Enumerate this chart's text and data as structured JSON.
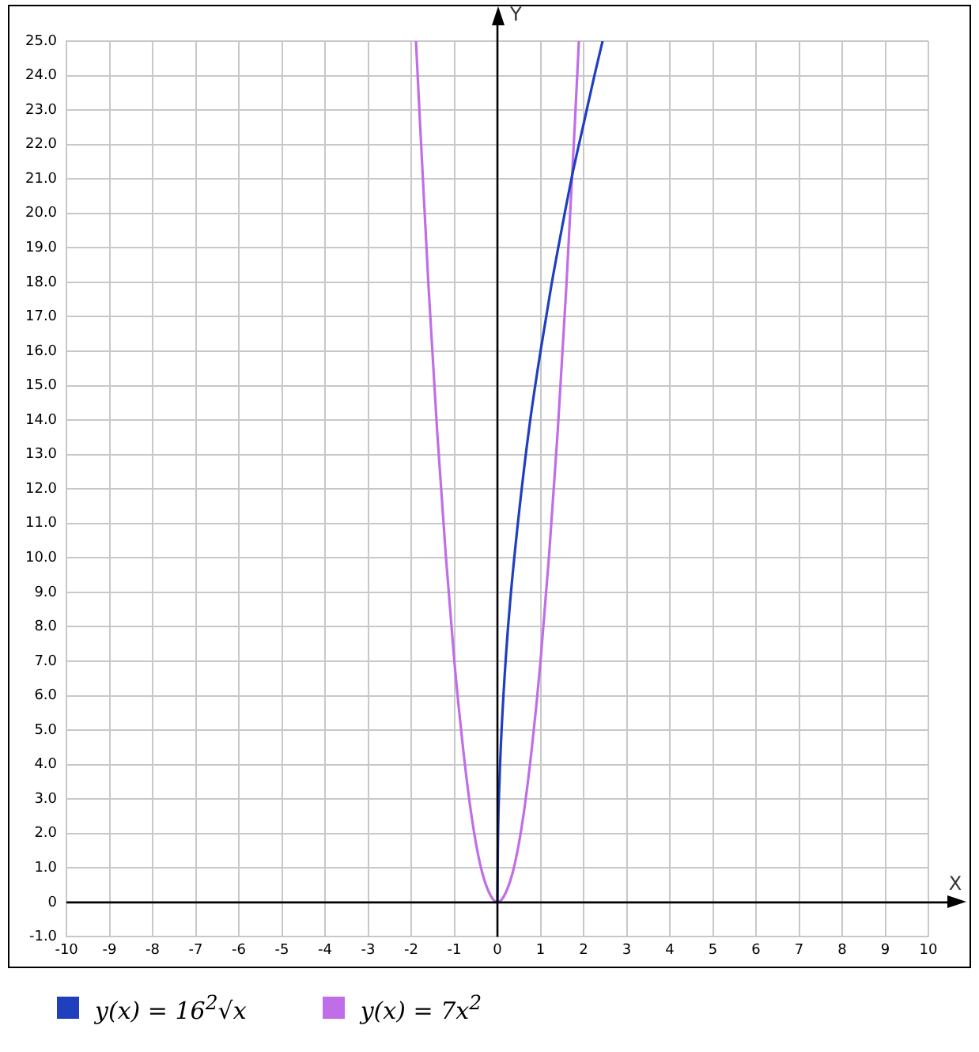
{
  "chart_data": {
    "type": "line",
    "xlabel": "X",
    "ylabel": "Y",
    "xlim": [
      -10,
      10
    ],
    "xticks": [
      -10,
      -9,
      -8,
      -7,
      -6,
      -5,
      -4,
      -3,
      -2,
      -1,
      0,
      1,
      2,
      3,
      4,
      5,
      6,
      7,
      8,
      9,
      10
    ],
    "ylim": [
      -1,
      25
    ],
    "yticks": [
      {
        "value": -1,
        "label": "-1.0"
      },
      0,
      {
        "value": 1,
        "label": "1.0"
      },
      {
        "value": 2,
        "label": "2.0"
      },
      {
        "value": 3,
        "label": "3.0"
      },
      {
        "value": 4,
        "label": "4.0"
      },
      {
        "value": 5,
        "label": "5.0"
      },
      {
        "value": 6,
        "label": "6.0"
      },
      {
        "value": 7,
        "label": "7.0"
      },
      {
        "value": 8,
        "label": "8.0"
      },
      {
        "value": 9,
        "label": "9.0"
      },
      {
        "value": 10,
        "label": "10.0"
      },
      {
        "value": 11,
        "label": "11.0"
      },
      {
        "value": 12,
        "label": "12.0"
      },
      {
        "value": 13,
        "label": "13.0"
      },
      {
        "value": 14,
        "label": "14.0"
      },
      {
        "value": 15,
        "label": "15.0"
      },
      {
        "value": 16,
        "label": "16.0"
      },
      {
        "value": 17,
        "label": "17.0"
      },
      {
        "value": 18,
        "label": "18.0"
      },
      {
        "value": 19,
        "label": "19.0"
      },
      {
        "value": 20,
        "label": "20.0"
      },
      {
        "value": 21,
        "label": "21.0"
      },
      {
        "value": 22,
        "label": "22.0"
      },
      {
        "value": 23,
        "label": "23.0"
      },
      {
        "value": 24,
        "label": "24.0"
      },
      {
        "value": 25,
        "label": "25.0"
      }
    ],
    "grid": true,
    "legend": "bottom",
    "marker": "none",
    "line_style": "solid",
    "series": [
      {
        "name": "y(x) = 16$^{2}$√x",
        "color": "#1f3fbf",
        "x": [
          0,
          0.01,
          0.05,
          0.1,
          0.2,
          0.3,
          0.5,
          0.75,
          1,
          1.25,
          1.5,
          1.75,
          2,
          2.25,
          2.44
        ],
        "values": [
          0,
          1.6,
          3.6,
          5.1,
          7.2,
          8.8,
          11.3,
          13.9,
          16,
          17.9,
          19.6,
          21.2,
          22.6,
          24,
          25
        ]
      },
      {
        "name": "y(x) = 7x$^{2}$",
        "color": "#c06ee8",
        "x": [
          -1.89,
          -1.8,
          -1.6,
          -1.4,
          -1.2,
          -1,
          -0.8,
          -0.6,
          -0.4,
          -0.2,
          0,
          0.2,
          0.4,
          0.6,
          0.8,
          1,
          1.2,
          1.4,
          1.6,
          1.8,
          1.89
        ],
        "values": [
          25,
          22.7,
          17.9,
          13.7,
          10.1,
          7,
          4.5,
          2.5,
          1.1,
          0.3,
          0,
          0.3,
          1.1,
          2.5,
          4.5,
          7,
          10.1,
          13.7,
          17.9,
          22.7,
          25
        ]
      }
    ]
  }
}
